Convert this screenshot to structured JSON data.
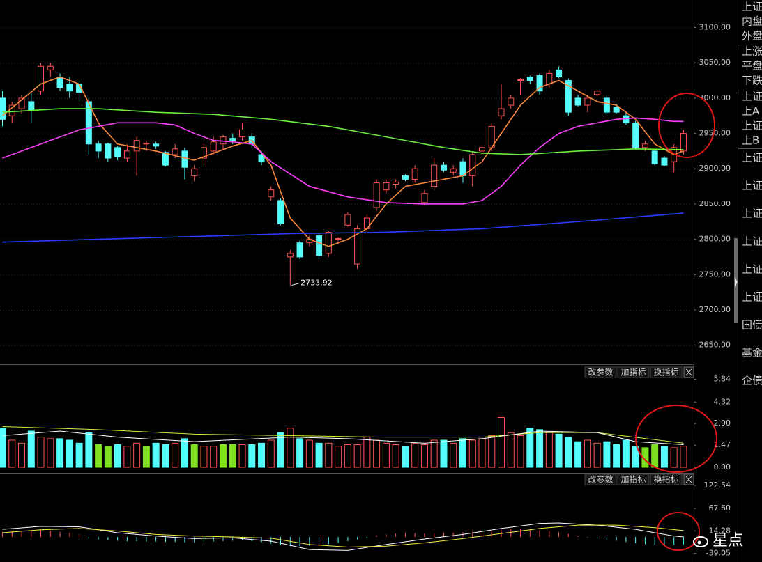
{
  "chart_data": [
    {
      "type": "candlestick",
      "open": [
        3000,
        2975,
        2985,
        2995,
        3010,
        3040,
        3030,
        3020,
        3020,
        2995,
        2935,
        2935,
        2930,
        2915,
        2925,
        2935,
        2935,
        2923,
        2920,
        2925,
        2890,
        2915,
        2925,
        2935,
        2943,
        2945,
        2945,
        2920,
        2860,
        2855,
        2775,
        2795,
        2795,
        2805,
        2780,
        2800,
        2820,
        2765,
        2815,
        2845,
        2870,
        2878,
        2890,
        2885,
        2852,
        2875,
        2905,
        2895,
        2910,
        2890,
        2925,
        2930,
        2975,
        2990,
        3025,
        3030,
        3032,
        3020,
        3040,
        3025,
        3000,
        2990,
        3005,
        3000,
        2987,
        2975,
        2965,
        2930,
        2925,
        2915,
        2910,
        2925
      ],
      "high": [
        3010,
        2995,
        3005,
        3010,
        3050,
        3050,
        3035,
        3030,
        3025,
        3000,
        2940,
        2937,
        2932,
        2935,
        2945,
        2940,
        2938,
        2925,
        2935,
        2930,
        2905,
        2935,
        2945,
        2948,
        2950,
        2965,
        2950,
        2925,
        2875,
        2858,
        2785,
        2798,
        2805,
        2808,
        2812,
        2803,
        2838,
        2820,
        2835,
        2885,
        2885,
        2885,
        2892,
        2905,
        2870,
        2915,
        2910,
        2905,
        2915,
        2925,
        2932,
        2965,
        3020,
        3005,
        3028,
        3032,
        3035,
        3040,
        3045,
        3028,
        3005,
        3005,
        3012,
        3005,
        2992,
        2980,
        2968,
        2940,
        2928,
        2918,
        2935,
        2955
      ],
      "low": [
        2960,
        2965,
        2978,
        2965,
        3005,
        3030,
        3010,
        3000,
        2995,
        2920,
        2915,
        2910,
        2912,
        2910,
        2890,
        2925,
        2928,
        2903,
        2915,
        2885,
        2882,
        2905,
        2920,
        2928,
        2935,
        2940,
        2930,
        2905,
        2855,
        2820,
        2733.92,
        2772,
        2790,
        2772,
        2775,
        2797,
        2818,
        2758,
        2810,
        2840,
        2865,
        2872,
        2882,
        2880,
        2848,
        2870,
        2895,
        2890,
        2880,
        2875,
        2920,
        2925,
        2970,
        2985,
        3005,
        3020,
        3005,
        3015,
        3028,
        2975,
        2988,
        2980,
        3003,
        2978,
        2978,
        2962,
        2928,
        2925,
        2905,
        2903,
        2895,
        2920
      ],
      "close": [
        2970,
        2990,
        3000,
        2983,
        3045,
        3045,
        3015,
        3010,
        3008,
        2935,
        2925,
        2915,
        2917,
        2925,
        2940,
        2936,
        2932,
        2905,
        2928,
        2902,
        2900,
        2930,
        2938,
        2945,
        2940,
        2955,
        2935,
        2910,
        2870,
        2822,
        2780,
        2775,
        2800,
        2777,
        2810,
        2801,
        2835,
        2815,
        2830,
        2880,
        2880,
        2881,
        2885,
        2900,
        2865,
        2905,
        2898,
        2900,
        2890,
        2920,
        2930,
        2960,
        2985,
        3000,
        3026,
        3025,
        3010,
        3035,
        3030,
        2980,
        2990,
        3000,
        3010,
        2980,
        2980,
        2965,
        2930,
        2935,
        2907,
        2905,
        2930,
        2950
      ],
      "up_color": "#ff5454",
      "down_color": "#54fcfc",
      "ylim": [
        2623,
        3139
      ],
      "yticks": [
        {
          "value": 3100,
          "label": "3100.00"
        },
        {
          "value": 3050,
          "label": "3050.00"
        },
        {
          "value": 3000,
          "label": "3000.00"
        },
        {
          "value": 2950,
          "label": "2950.00"
        },
        {
          "value": 2900,
          "label": "2900.00"
        },
        {
          "value": 2850,
          "label": "2850.00"
        },
        {
          "value": 2800,
          "label": "2800.00"
        },
        {
          "value": 2750,
          "label": "2750.00"
        },
        {
          "value": 2700,
          "label": "2700.00"
        },
        {
          "value": 2650,
          "label": "2650.00"
        }
      ],
      "grid": true,
      "annotation": 2733.92,
      "lines": [
        {
          "color": "#ff8a3c",
          "x": [
            0,
            4,
            6,
            8,
            10,
            12,
            16,
            20,
            24,
            26,
            28,
            30,
            32,
            34,
            36,
            38,
            40,
            42,
            44,
            46,
            48,
            50,
            52,
            54,
            56,
            58,
            60,
            62,
            64,
            66,
            68,
            70,
            71
          ],
          "values": [
            2975,
            3020,
            3030,
            3020,
            2965,
            2935,
            2925,
            2912,
            2932,
            2940,
            2905,
            2830,
            2800,
            2790,
            2800,
            2815,
            2850,
            2875,
            2880,
            2885,
            2890,
            2910,
            2950,
            2990,
            3015,
            3025,
            3010,
            2995,
            2990,
            2970,
            2935,
            2920,
            2925
          ]
        },
        {
          "color": "#ff40ff",
          "x": [
            0,
            4,
            8,
            12,
            16,
            18,
            20,
            22,
            24,
            26,
            28,
            32,
            36,
            40,
            44,
            48,
            50,
            52,
            54,
            56,
            58,
            60,
            62,
            64,
            66,
            68,
            70,
            71
          ],
          "values": [
            2915,
            2935,
            2955,
            2965,
            2965,
            2962,
            2950,
            2940,
            2938,
            2935,
            2910,
            2875,
            2860,
            2852,
            2850,
            2850,
            2855,
            2875,
            2905,
            2930,
            2950,
            2960,
            2965,
            2970,
            2972,
            2970,
            2967,
            2967
          ]
        },
        {
          "color": "#6cf03c",
          "x": [
            0,
            6,
            10,
            16,
            22,
            28,
            34,
            40,
            46,
            50,
            54,
            60,
            66,
            71
          ],
          "values": [
            2980,
            2985,
            2985,
            2980,
            2977,
            2970,
            2960,
            2945,
            2930,
            2922,
            2920,
            2925,
            2928,
            2927
          ]
        },
        {
          "color": "#2a3cff",
          "x": [
            0,
            10,
            30,
            40,
            50,
            60,
            71
          ],
          "values": [
            2796,
            2800,
            2808,
            2810,
            2815,
            2825,
            2837
          ]
        }
      ]
    },
    {
      "type": "bar",
      "values": [
        2.6,
        1.8,
        1.6,
        2.4,
        2.0,
        1.9,
        1.9,
        1.8,
        1.6,
        2.3,
        1.5,
        1.4,
        1.5,
        1.4,
        1.6,
        1.4,
        1.6,
        1.5,
        1.6,
        1.9,
        1.5,
        1.4,
        1.4,
        1.5,
        1.5,
        1.5,
        1.5,
        1.6,
        1.8,
        2.3,
        2.6,
        1.9,
        1.8,
        1.6,
        1.6,
        1.4,
        1.5,
        1.5,
        2.0,
        1.8,
        1.6,
        1.5,
        1.4,
        1.6,
        1.5,
        1.8,
        1.8,
        1.6,
        1.9,
        1.8,
        1.9,
        2.1,
        3.3,
        2.3,
        2.1,
        2.6,
        2.5,
        2.3,
        2.2,
        2.0,
        1.7,
        1.8,
        1.6,
        1.7,
        1.5,
        1.8,
        1.4,
        1.3,
        1.5,
        1.4,
        1.3,
        1.4
      ],
      "colors": [
        "#54fcfc",
        "#ff5454",
        "#ff5454",
        "#54fcfc",
        "#ff5454",
        "#ff5454",
        "#54fcfc",
        "#54fcfc",
        "#54fcfc",
        "#54fcfc",
        "#7fe022",
        "#7fe022",
        "#54fcfc",
        "#ff5454",
        "#ff5454",
        "#7fe022",
        "#54fcfc",
        "#54fcfc",
        "#ff5454",
        "#54fcfc",
        "#7fe022",
        "#ff5454",
        "#ff5454",
        "#7fe022",
        "#7fe022",
        "#ff5454",
        "#54fcfc",
        "#54fcfc",
        "#ff5454",
        "#54fcfc",
        "#ff5454",
        "#54fcfc",
        "#ff5454",
        "#54fcfc",
        "#ff5454",
        "#ff5454",
        "#ff5454",
        "#ff5454",
        "#ff5454",
        "#ff5454",
        "#ff5454",
        "#ff5454",
        "#54fcfc",
        "#ff5454",
        "#ff5454",
        "#ff5454",
        "#54fcfc",
        "#ff5454",
        "#54fcfc",
        "#ff5454",
        "#ff5454",
        "#ff5454",
        "#ff5454",
        "#ff5454",
        "#ff5454",
        "#54fcfc",
        "#54fcfc",
        "#ff5454",
        "#54fcfc",
        "#54fcfc",
        "#54fcfc",
        "#ff5454",
        "#ff5454",
        "#54fcfc",
        "#54fcfc",
        "#54fcfc",
        "#54fcfc",
        "#7fe022",
        "#7fe022",
        "#54fcfc",
        "#ff5454",
        "#ff5454"
      ],
      "ylim": [
        0,
        6
      ],
      "yticks": [
        5.84,
        4.32,
        {
          "value": 2.9,
          "label": "2.90"
        },
        1.47,
        {
          "value": 0,
          "label": "0.00"
        }
      ],
      "grid": false,
      "lines": [
        {
          "color": "#d0f040",
          "x": [
            0,
            10,
            20,
            30,
            40,
            50,
            56,
            62,
            71
          ],
          "values": [
            2.7,
            2.5,
            2.2,
            2.1,
            2.0,
            2.0,
            2.3,
            2.3,
            1.6
          ]
        },
        {
          "color": "#ffffff",
          "x": [
            0,
            6,
            12,
            20,
            30,
            36,
            44,
            50,
            56,
            62,
            66,
            71
          ],
          "values": [
            2.1,
            2.4,
            2.0,
            1.7,
            2.0,
            1.9,
            1.6,
            1.9,
            2.4,
            2.3,
            1.7,
            1.5
          ]
        }
      ],
      "buttons": [
        "改参数",
        "加指标",
        "换指标"
      ]
    },
    {
      "type": "macd",
      "values": [
        12,
        14,
        13,
        15,
        16,
        14,
        12,
        10,
        6,
        -4,
        -6,
        -8,
        -9,
        -10,
        -10,
        -11,
        -11,
        -12,
        -12,
        -13,
        -13,
        -12,
        -11,
        -10,
        -9,
        -8,
        -10,
        -13,
        -16,
        -20,
        -22,
        -22,
        -21,
        -19,
        -17,
        -14,
        -10,
        -6,
        -2,
        4,
        6,
        8,
        9,
        9,
        8,
        9,
        10,
        10,
        11,
        12,
        13,
        15,
        17,
        18,
        18,
        17,
        16,
        14,
        11,
        7,
        3,
        -1,
        -4,
        -7,
        -9,
        -12,
        -15,
        -17,
        -19,
        -20,
        -19,
        -18
      ],
      "up_color": "#ff5454",
      "down_color": "#54fcfc",
      "ylim": [
        -48,
        134
      ],
      "yticks": [
        122.54,
        {
          "value": 67.6,
          "label": "67.60"
        },
        14.28,
        -39.05
      ],
      "grid": false,
      "lines": [
        {
          "color": "#ffffff",
          "x": [
            0,
            4,
            8,
            12,
            16,
            20,
            24,
            28,
            32,
            36,
            40,
            44,
            48,
            52,
            56,
            58,
            62,
            66,
            70,
            71
          ],
          "values": [
            18,
            25,
            24,
            10,
            2,
            -4,
            -2,
            -10,
            -30,
            -32,
            -18,
            -5,
            6,
            20,
            32,
            33,
            28,
            18,
            2,
            0
          ]
        },
        {
          "color": "#f0f040",
          "x": [
            0,
            4,
            8,
            12,
            16,
            20,
            24,
            28,
            32,
            36,
            40,
            44,
            48,
            52,
            56,
            60,
            64,
            68,
            71
          ],
          "values": [
            10,
            17,
            20,
            14,
            6,
            2,
            0,
            -3,
            -18,
            -24,
            -22,
            -14,
            -4,
            8,
            20,
            28,
            28,
            22,
            15
          ]
        }
      ],
      "buttons": [
        "改参数",
        "加指标",
        "换指标"
      ]
    }
  ],
  "sidebar": [
    "上证",
    "内盘",
    "外盘",
    "上涨",
    "平盘",
    "下跌",
    "上证",
    "上A",
    "上证",
    "上B",
    "上证",
    "上证",
    "上证",
    "上证",
    "上证",
    "上证",
    "国债",
    "基金",
    "企债"
  ],
  "watermark": "星点"
}
